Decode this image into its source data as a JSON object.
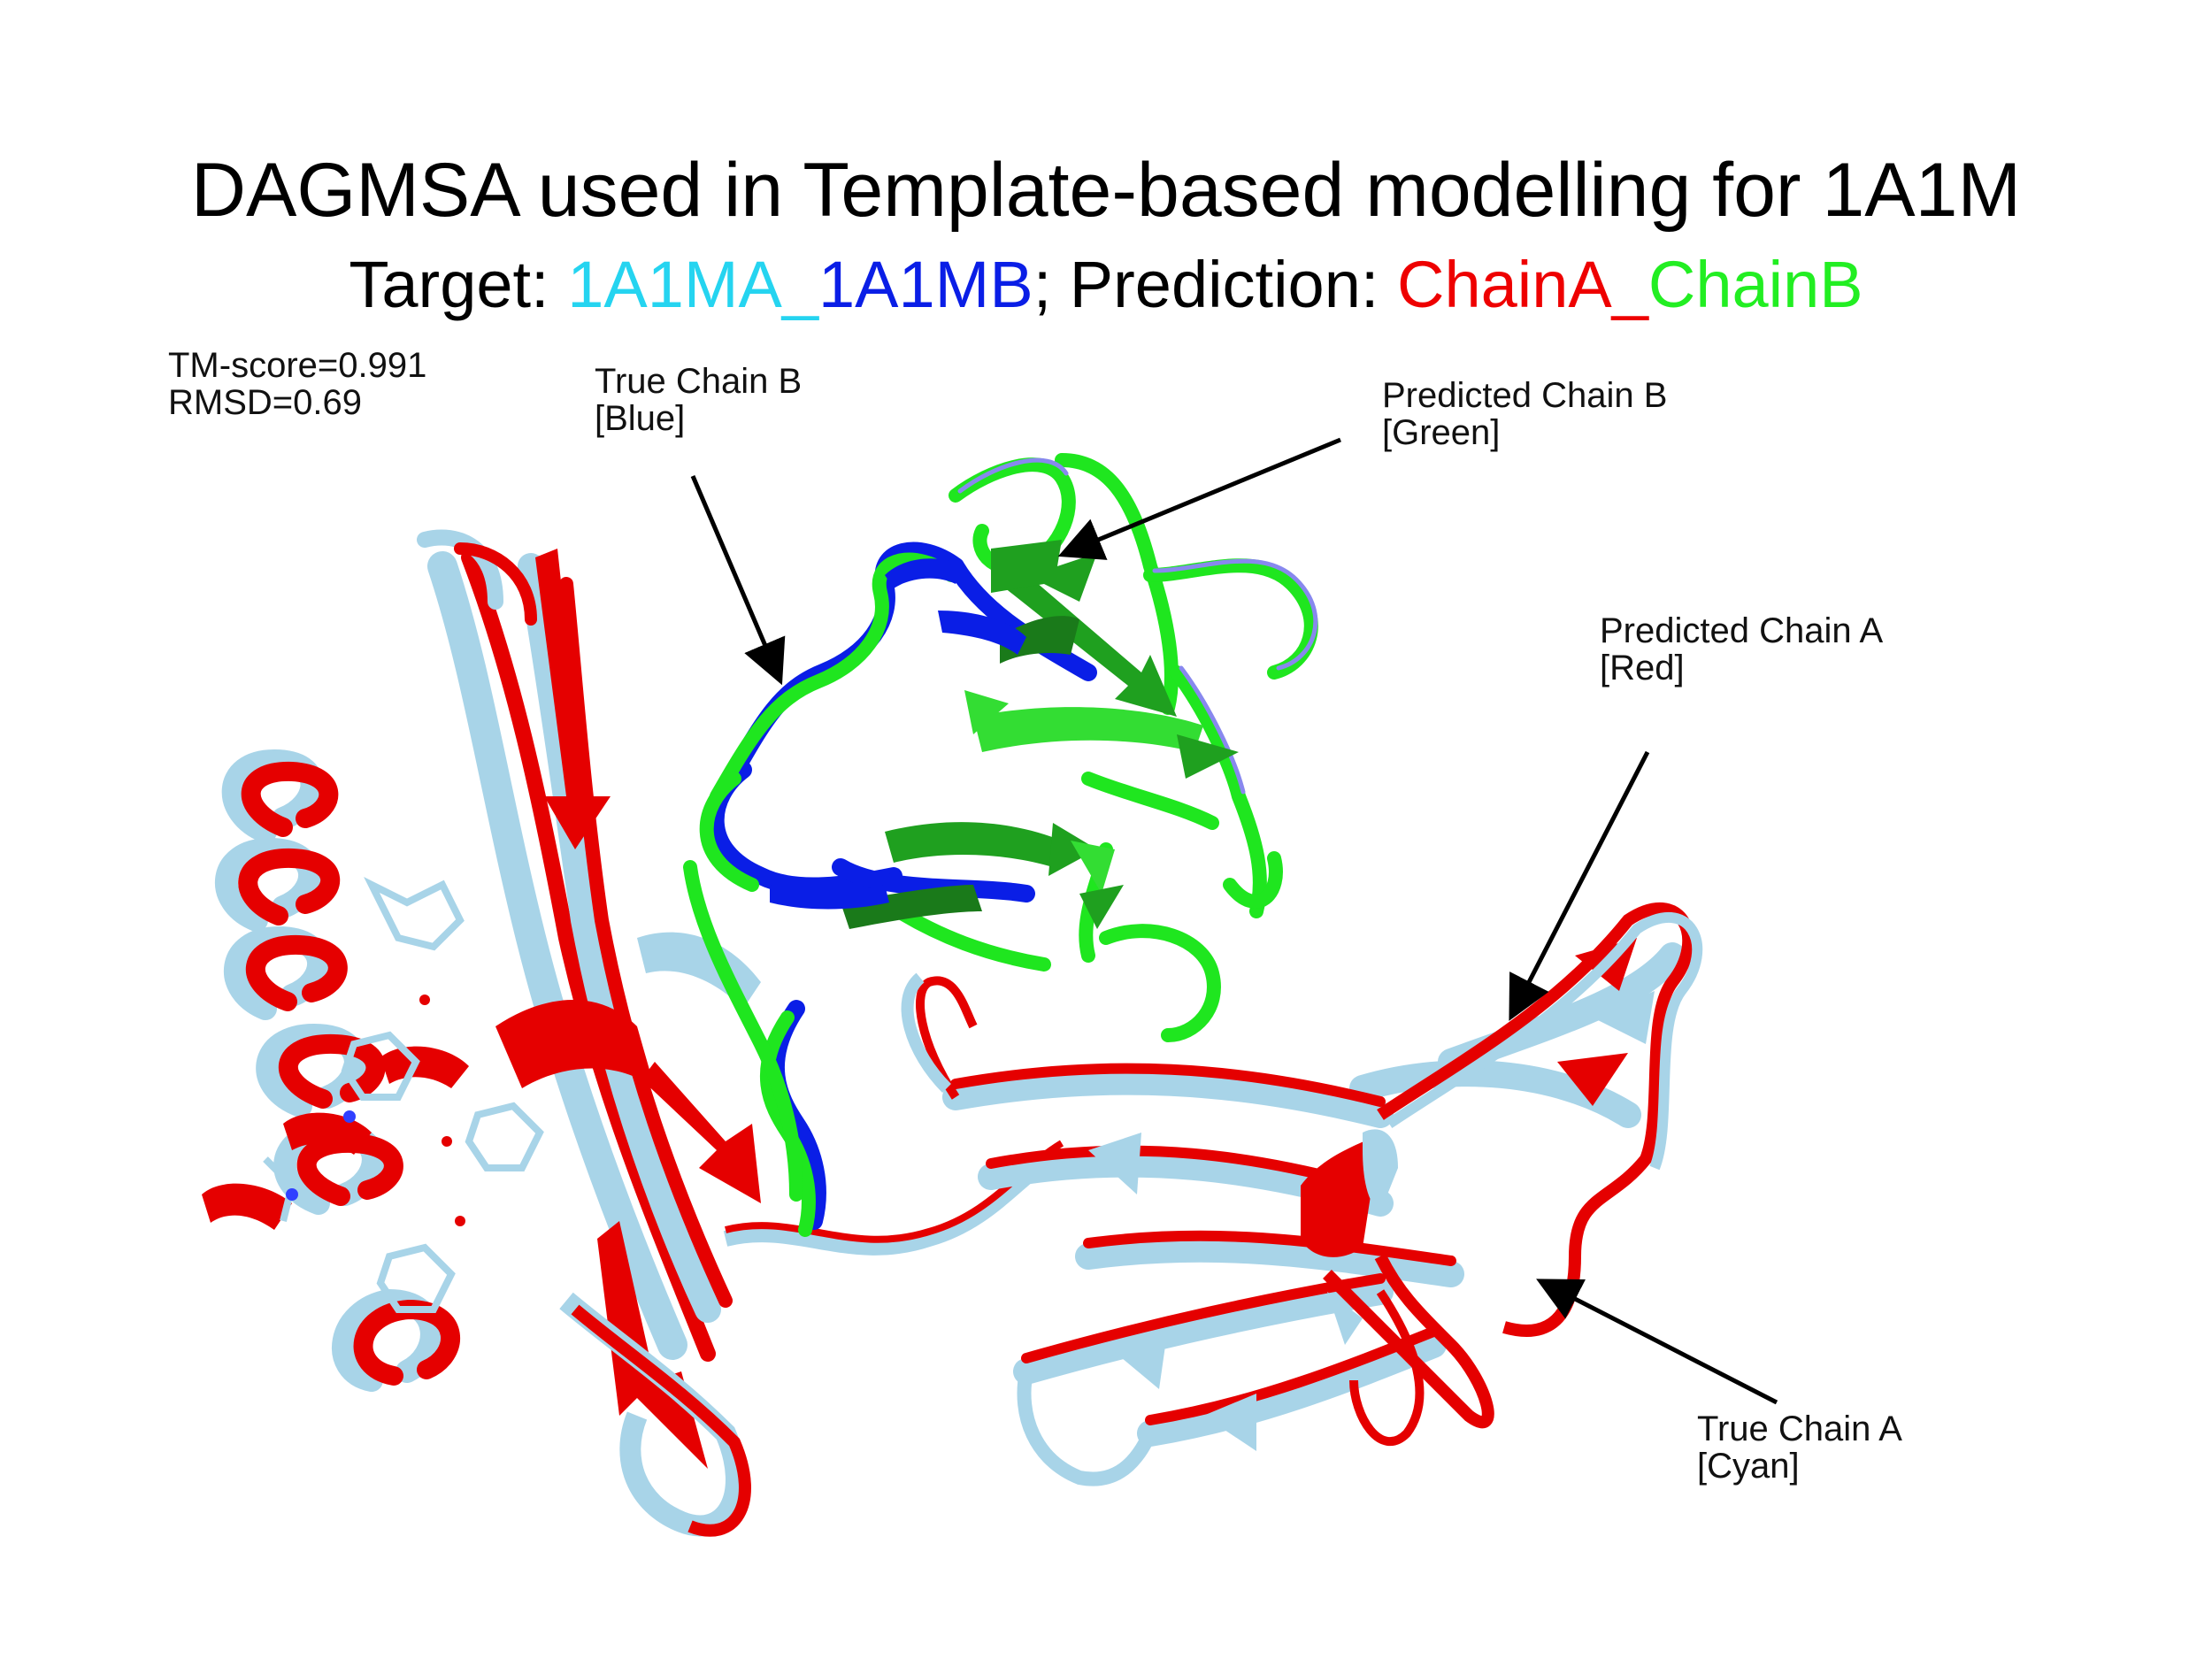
{
  "title": "DAGMSA used in Template-based modelling for 1A1M",
  "subtitle": {
    "prefix": "Target: ",
    "target_a": "1A1MA",
    "sep1": "_",
    "target_b": "1A1MB",
    "middle": "; Prediction: ",
    "pred_a": "ChainA",
    "sep2": "_",
    "pred_b": "ChainB"
  },
  "colors": {
    "true_chain_a": "#a8d4e8",
    "true_chain_b": "#0a1ee6",
    "predicted_chain_a": "#ee0000",
    "predicted_chain_b": "#22ee22",
    "label_cyan": "#25d4f0",
    "label_blue": "#0a1ee6",
    "label_red": "#ee0000",
    "label_green": "#22ee22"
  },
  "scores": {
    "tm_score": "TM-score=0.991",
    "rmsd": "RMSD=0.69"
  },
  "annotations": {
    "true_chain_b": {
      "line1": "True Chain B",
      "line2": "[Blue]"
    },
    "predicted_chain_b": {
      "line1": "Predicted Chain B",
      "line2": "[Green]"
    },
    "predicted_chain_a": {
      "line1": "Predicted Chain A",
      "line2": "[Red]"
    },
    "true_chain_a": {
      "line1": "True Chain A",
      "line2": "[Cyan]"
    }
  }
}
